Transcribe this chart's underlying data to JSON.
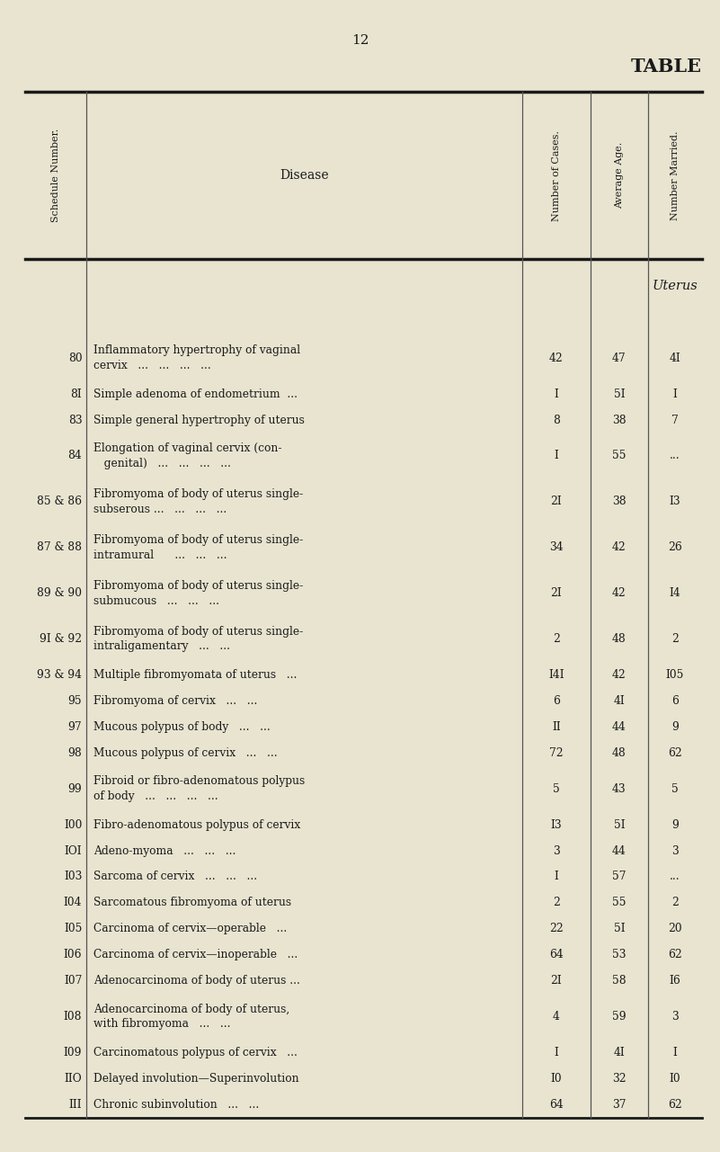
{
  "page_number": "12",
  "title": "TABLE",
  "bg_color": "#e8e4d0",
  "col_headers_rotated": [
    "Schedule Number.",
    "Number of Cases.",
    "Average Age.",
    "Number Married."
  ],
  "col_header_disease": "Disease",
  "section_label": "Uterus",
  "rows": [
    {
      "sched": "80",
      "disease": "Inflammatory hypertrophy of vaginal\ncervix   ...   ...   ...   ...",
      "cases": "42",
      "age": "47",
      "married": "4I"
    },
    {
      "sched": "8I",
      "disease": "Simple adenoma of endometrium  ...",
      "cases": "I",
      "age": "5I",
      "married": "I"
    },
    {
      "sched": "83",
      "disease": "Simple general hypertrophy of uterus",
      "cases": "8",
      "age": "38",
      "married": "7"
    },
    {
      "sched": "84",
      "disease": "Elongation of vaginal cervix (con-\n   genital)   ...   ...   ...   ...",
      "cases": "I",
      "age": "55",
      "married": "..."
    },
    {
      "sched": "85 & 86",
      "disease": "Fibromyoma of body of uterus single-\nsubserous ...   ...   ...   ...",
      "cases": "2I",
      "age": "38",
      "married": "I3"
    },
    {
      "sched": "87 & 88",
      "disease": "Fibromyoma of body of uterus single-\nintramural      ...   ...   ...",
      "cases": "34",
      "age": "42",
      "married": "26"
    },
    {
      "sched": "89 & 90",
      "disease": "Fibromyoma of body of uterus single-\nsubmucous   ...   ...   ...",
      "cases": "2I",
      "age": "42",
      "married": "I4"
    },
    {
      "sched": "9I & 92",
      "disease": "Fibromyoma of body of uterus single-\nintraligamentary   ...   ...",
      "cases": "2",
      "age": "48",
      "married": "2"
    },
    {
      "sched": "93 & 94",
      "disease": "Multiple fibromyomata of uterus   ...",
      "cases": "I4I",
      "age": "42",
      "married": "I05"
    },
    {
      "sched": "95",
      "disease": "Fibromyoma of cervix   ...   ...",
      "cases": "6",
      "age": "4I",
      "married": "6"
    },
    {
      "sched": "97",
      "disease": "Mucous polypus of body   ...   ...",
      "cases": "II",
      "age": "44",
      "married": "9"
    },
    {
      "sched": "98",
      "disease": "Mucous polypus of cervix   ...   ...",
      "cases": "72",
      "age": "48",
      "married": "62"
    },
    {
      "sched": "99",
      "disease": "Fibroid or fibro-adenomatous polypus\nof body   ...   ...   ...   ...",
      "cases": "5",
      "age": "43",
      "married": "5"
    },
    {
      "sched": "I00",
      "disease": "Fibro-adenomatous polypus of cervix",
      "cases": "I3",
      "age": "5I",
      "married": "9"
    },
    {
      "sched": "IOI",
      "disease": "Adeno-myoma   ...   ...   ...",
      "cases": "3",
      "age": "44",
      "married": "3"
    },
    {
      "sched": "I03",
      "disease": "Sarcoma of cervix   ...   ...   ...",
      "cases": "I",
      "age": "57",
      "married": "..."
    },
    {
      "sched": "I04",
      "disease": "Sarcomatous fibromyoma of uterus",
      "cases": "2",
      "age": "55",
      "married": "2"
    },
    {
      "sched": "I05",
      "disease": "Carcinoma of cervix—operable   ...",
      "cases": "22",
      "age": "5I",
      "married": "20"
    },
    {
      "sched": "I06",
      "disease": "Carcinoma of cervix—inoperable   ...",
      "cases": "64",
      "age": "53",
      "married": "62"
    },
    {
      "sched": "I07",
      "disease": "Adenocarcinoma of body of uterus ...",
      "cases": "2I",
      "age": "58",
      "married": "I6"
    },
    {
      "sched": "I08",
      "disease": "Adenocarcinoma of body of uterus,\nwith fibromyoma   ...   ...",
      "cases": "4",
      "age": "59",
      "married": "3"
    },
    {
      "sched": "I09",
      "disease": "Carcinomatous polypus of cervix   ...",
      "cases": "I",
      "age": "4I",
      "married": "I"
    },
    {
      "sched": "IIO",
      "disease": "Delayed involution—Superinvolution",
      "cases": "I0",
      "age": "32",
      "married": "I0"
    },
    {
      "sched": "III",
      "disease": "Chronic subinvolution   ...   ...",
      "cases": "64",
      "age": "37",
      "married": "62"
    }
  ]
}
